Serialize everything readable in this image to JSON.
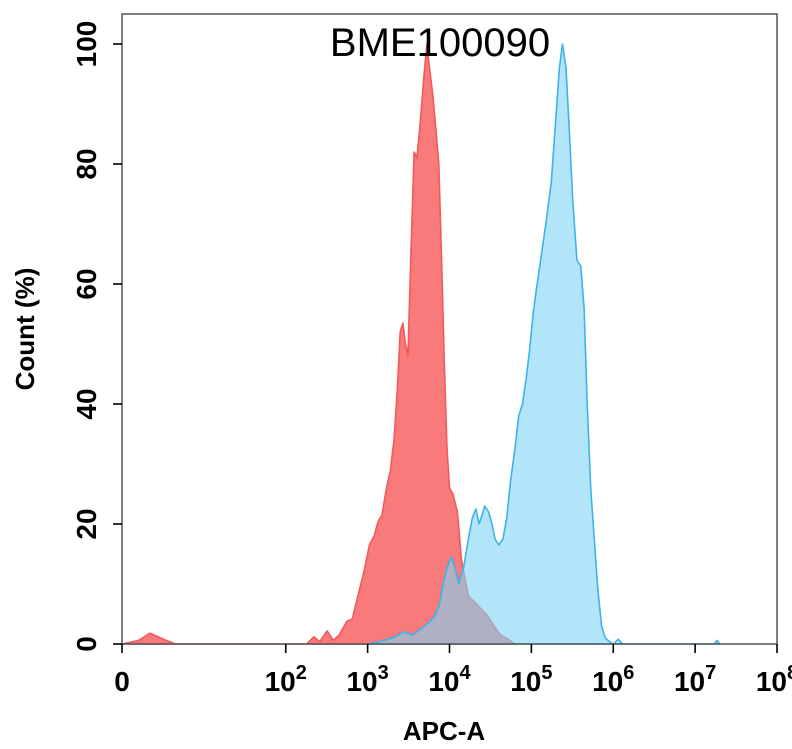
{
  "chart_data": {
    "type": "area",
    "title": "BME100090",
    "xlabel": "APC-A",
    "ylabel": "Count  (%)",
    "x_scale": "log",
    "xlim": [
      1,
      100000000
    ],
    "ylim": [
      0,
      105
    ],
    "x_ticks": [
      {
        "value": 1,
        "base": "0",
        "exp": ""
      },
      {
        "value": 100,
        "base": "10",
        "exp": "2"
      },
      {
        "value": 1000,
        "base": "10",
        "exp": "3"
      },
      {
        "value": 10000,
        "base": "10",
        "exp": "4"
      },
      {
        "value": 100000,
        "base": "10",
        "exp": "5"
      },
      {
        "value": 1000000,
        "base": "10",
        "exp": "6"
      },
      {
        "value": 10000000,
        "base": "10",
        "exp": "7"
      },
      {
        "value": 100000000,
        "base": "10",
        "exp": "8"
      }
    ],
    "y_ticks": [
      0,
      20,
      40,
      60,
      80,
      100
    ],
    "grid": false,
    "series": [
      {
        "color": "#f25a5a",
        "fill": "#f87a7a",
        "points": [
          [
            1,
            0
          ],
          [
            1.6,
            0.6
          ],
          [
            2.2,
            1.8
          ],
          [
            3.2,
            0.8
          ],
          [
            4.5,
            0
          ],
          [
            180,
            0
          ],
          [
            220,
            1.2
          ],
          [
            260,
            0.4
          ],
          [
            320,
            2.2
          ],
          [
            380,
            0.6
          ],
          [
            450,
            1.5
          ],
          [
            560,
            3.8
          ],
          [
            650,
            4.2
          ],
          [
            760,
            8.0
          ],
          [
            900,
            12.0
          ],
          [
            1050,
            16.5
          ],
          [
            1200,
            18.0
          ],
          [
            1350,
            20.5
          ],
          [
            1500,
            21.5
          ],
          [
            1700,
            26.0
          ],
          [
            1900,
            29.0
          ],
          [
            2100,
            34.0
          ],
          [
            2300,
            42.0
          ],
          [
            2500,
            52.0
          ],
          [
            2700,
            53.5
          ],
          [
            2900,
            50.0
          ],
          [
            3100,
            48.0
          ],
          [
            3400,
            66.0
          ],
          [
            3700,
            82.0
          ],
          [
            4000,
            81.0
          ],
          [
            4400,
            87.0
          ],
          [
            4900,
            95.0
          ],
          [
            5300,
            100.0
          ],
          [
            5700,
            96.0
          ],
          [
            6200,
            92.0
          ],
          [
            6800,
            86.0
          ],
          [
            7400,
            80.0
          ],
          [
            8000,
            64.0
          ],
          [
            8600,
            48.0
          ],
          [
            9300,
            33.0
          ],
          [
            10000,
            26.0
          ],
          [
            11000,
            25.0
          ],
          [
            12500,
            22.0
          ],
          [
            14000,
            14.0
          ],
          [
            17000,
            8.0
          ],
          [
            22000,
            6.5
          ],
          [
            28000,
            5.0
          ],
          [
            35000,
            3.0
          ],
          [
            42000,
            1.5
          ],
          [
            52000,
            0.8
          ],
          [
            62000,
            0
          ]
        ]
      },
      {
        "color": "#3cb4e6",
        "fill": "#7fd3f5",
        "points": [
          [
            1000,
            0
          ],
          [
            1400,
            0.4
          ],
          [
            2000,
            1.0
          ],
          [
            2800,
            2.0
          ],
          [
            3500,
            1.5
          ],
          [
            4500,
            2.5
          ],
          [
            5500,
            3.5
          ],
          [
            6500,
            4.5
          ],
          [
            7500,
            6.5
          ],
          [
            8500,
            10.5
          ],
          [
            9500,
            13.0
          ],
          [
            10500,
            14.5
          ],
          [
            11500,
            13.0
          ],
          [
            13000,
            10.0
          ],
          [
            15000,
            13.0
          ],
          [
            17000,
            17.5
          ],
          [
            19000,
            21.0
          ],
          [
            21000,
            22.5
          ],
          [
            23000,
            20.0
          ],
          [
            25000,
            21.5
          ],
          [
            27000,
            23.0
          ],
          [
            30000,
            22.0
          ],
          [
            33000,
            20.0
          ],
          [
            36000,
            17.5
          ],
          [
            40000,
            16.5
          ],
          [
            45000,
            17.5
          ],
          [
            50000,
            21.0
          ],
          [
            56000,
            27.5
          ],
          [
            63000,
            32.5
          ],
          [
            70000,
            38.0
          ],
          [
            78000,
            40.0
          ],
          [
            86000,
            44.0
          ],
          [
            95000,
            49.0
          ],
          [
            105000,
            55.0
          ],
          [
            115000,
            59.0
          ],
          [
            130000,
            64.0
          ],
          [
            150000,
            70.0
          ],
          [
            175000,
            77.0
          ],
          [
            200000,
            88.0
          ],
          [
            220000,
            96.0
          ],
          [
            240000,
            100.0
          ],
          [
            265000,
            96.0
          ],
          [
            290000,
            86.0
          ],
          [
            320000,
            74.0
          ],
          [
            360000,
            64.0
          ],
          [
            400000,
            63.0
          ],
          [
            440000,
            56.0
          ],
          [
            480000,
            40.0
          ],
          [
            530000,
            26.0
          ],
          [
            590000,
            17.0
          ],
          [
            650000,
            9.0
          ],
          [
            720000,
            3.0
          ],
          [
            800000,
            1.0
          ],
          [
            900000,
            0.4
          ],
          [
            1000000,
            0
          ],
          [
            1150000,
            0.8
          ],
          [
            1300000,
            0
          ],
          [
            17000000,
            0
          ],
          [
            18500000,
            0.6
          ],
          [
            20000000,
            0
          ]
        ]
      }
    ]
  }
}
